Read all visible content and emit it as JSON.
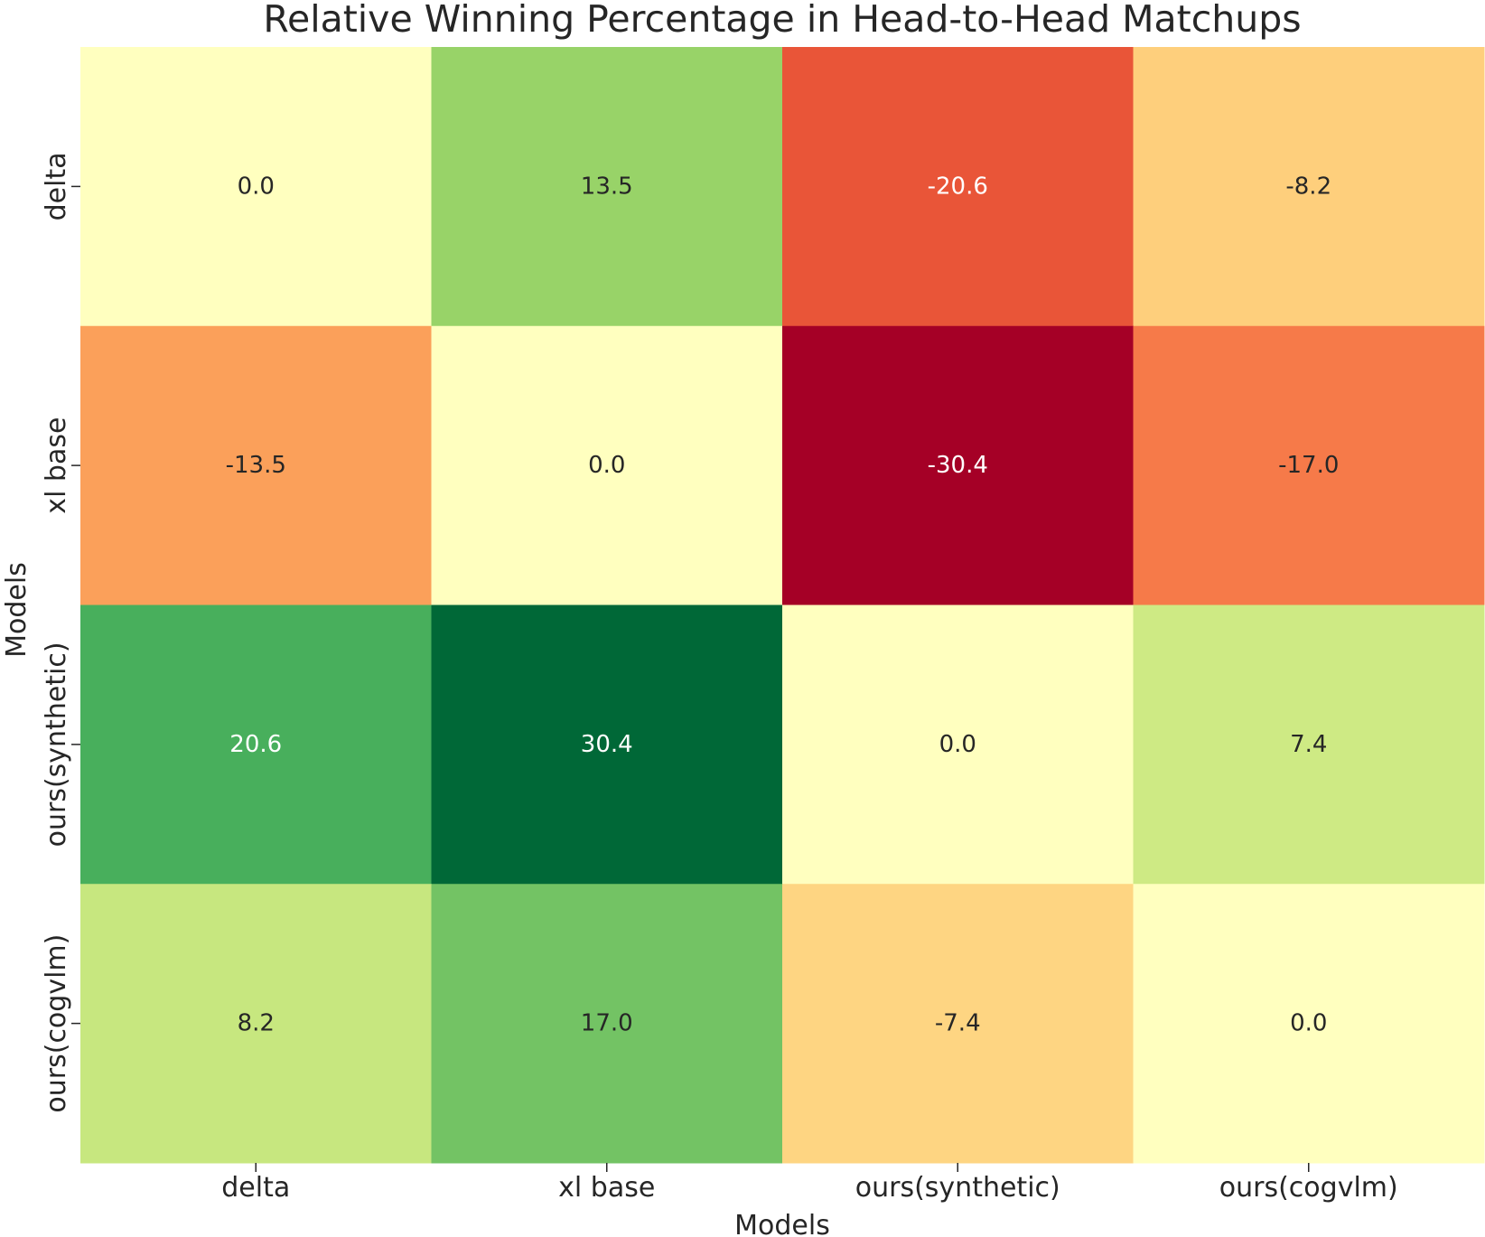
{
  "chart_data": {
    "type": "heatmap",
    "title": "Relative Winning Percentage in Head-to-Head Matchups",
    "xlabel": "Models",
    "ylabel": "Models",
    "x_categories": [
      "delta",
      "xl base",
      "ours(synthetic)",
      "ours(cogvlm)"
    ],
    "y_categories": [
      "delta",
      "xl base",
      "ours(synthetic)",
      "ours(cogvlm)"
    ],
    "values": [
      [
        0.0,
        13.5,
        -20.6,
        -8.2
      ],
      [
        -13.5,
        0.0,
        -30.4,
        -17.0
      ],
      [
        20.6,
        30.4,
        0.0,
        7.4
      ],
      [
        8.2,
        17.0,
        -7.4,
        0.0
      ]
    ],
    "value_labels": [
      [
        "0.0",
        "13.5",
        "-20.6",
        "-8.2"
      ],
      [
        "-13.5",
        "0.0",
        "-30.4",
        "-17.0"
      ],
      [
        "20.6",
        "30.4",
        "0.0",
        "7.4"
      ],
      [
        "8.2",
        "17.0",
        "-7.4",
        "0.0"
      ]
    ],
    "colormap": "RdYlGn",
    "vmin": -30.4,
    "vmax": 30.4,
    "colorbar": false
  }
}
